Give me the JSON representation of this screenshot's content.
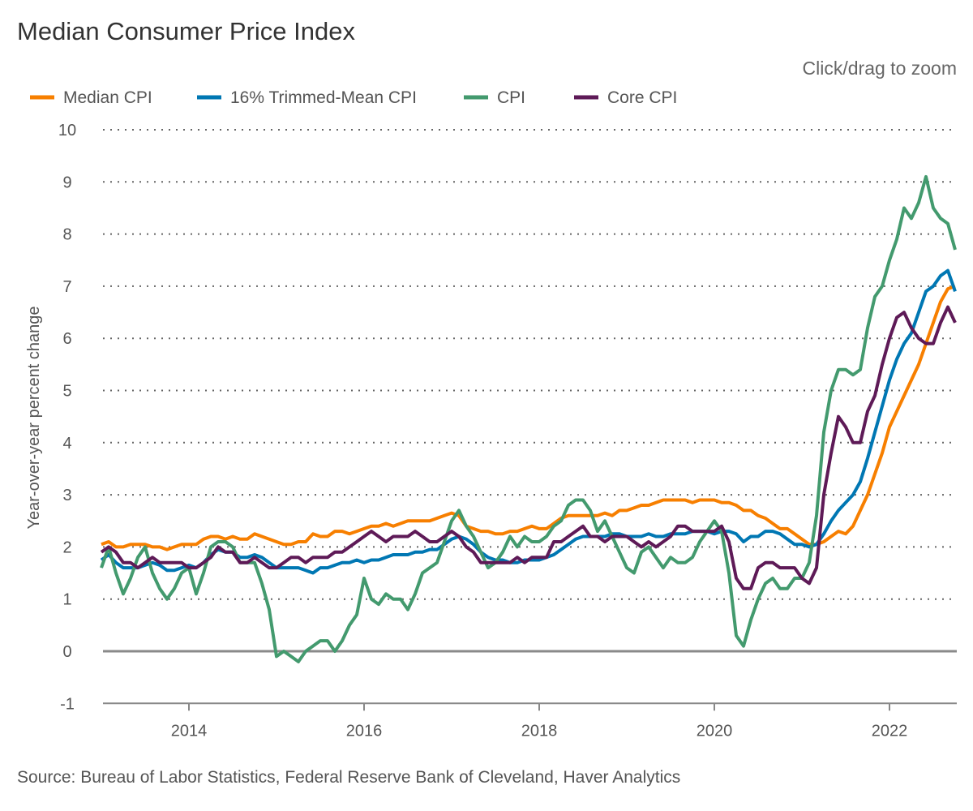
{
  "title": "Median Consumer Price Index",
  "zoom_hint": "Click/drag to zoom",
  "source": "Source: Bureau of Labor Statistics, Federal Reserve Bank of Cleveland, Haver Analytics",
  "chart_data": {
    "type": "line",
    "title": "Median Consumer Price Index",
    "xlabel": "",
    "ylabel": "Year-over-year percent change",
    "x_start": "2013-01",
    "x_end": "2022-10",
    "x_frequency": "monthly",
    "x_ticks": [
      "2014",
      "2016",
      "2018",
      "2020",
      "2022"
    ],
    "y_ticks": [
      "-1",
      "0",
      "1",
      "2",
      "3",
      "4",
      "5",
      "6",
      "7",
      "8",
      "9",
      "10"
    ],
    "ylim": [
      -1,
      10
    ],
    "grid": true,
    "legend": "top-left",
    "series": [
      {
        "name": "Median CPI",
        "color": "#f77f00",
        "values": [
          2.05,
          2.1,
          2.0,
          2.0,
          2.05,
          2.05,
          2.05,
          2.0,
          2.0,
          1.95,
          2.0,
          2.05,
          2.05,
          2.05,
          2.15,
          2.2,
          2.2,
          2.15,
          2.2,
          2.15,
          2.15,
          2.25,
          2.2,
          2.15,
          2.1,
          2.05,
          2.05,
          2.1,
          2.1,
          2.25,
          2.2,
          2.2,
          2.3,
          2.3,
          2.25,
          2.3,
          2.35,
          2.4,
          2.4,
          2.45,
          2.4,
          2.45,
          2.5,
          2.5,
          2.5,
          2.5,
          2.55,
          2.6,
          2.65,
          2.6,
          2.4,
          2.35,
          2.3,
          2.3,
          2.25,
          2.25,
          2.3,
          2.3,
          2.35,
          2.4,
          2.35,
          2.35,
          2.45,
          2.55,
          2.6,
          2.6,
          2.6,
          2.6,
          2.6,
          2.65,
          2.6,
          2.7,
          2.7,
          2.75,
          2.8,
          2.8,
          2.85,
          2.9,
          2.9,
          2.9,
          2.9,
          2.85,
          2.9,
          2.9,
          2.9,
          2.85,
          2.85,
          2.8,
          2.7,
          2.7,
          2.6,
          2.55,
          2.45,
          2.35,
          2.35,
          2.25,
          2.15,
          2.05,
          2.05,
          2.1,
          2.2,
          2.3,
          2.25,
          2.4,
          2.7,
          3.0,
          3.4,
          3.8,
          4.3,
          4.6,
          4.9,
          5.2,
          5.5,
          5.9,
          6.3,
          6.7,
          6.95,
          7.0
        ]
      },
      {
        "name": "16% Trimmed-Mean CPI",
        "color": "#0077b3",
        "values": [
          1.75,
          1.85,
          1.7,
          1.6,
          1.6,
          1.6,
          1.65,
          1.7,
          1.65,
          1.55,
          1.55,
          1.6,
          1.65,
          1.6,
          1.7,
          1.85,
          1.95,
          1.9,
          1.9,
          1.8,
          1.8,
          1.85,
          1.8,
          1.7,
          1.6,
          1.6,
          1.6,
          1.6,
          1.55,
          1.5,
          1.6,
          1.6,
          1.65,
          1.7,
          1.7,
          1.75,
          1.7,
          1.75,
          1.75,
          1.8,
          1.85,
          1.85,
          1.85,
          1.9,
          1.9,
          1.95,
          1.95,
          2.05,
          2.15,
          2.2,
          2.15,
          2.05,
          1.9,
          1.8,
          1.75,
          1.75,
          1.7,
          1.7,
          1.75,
          1.75,
          1.75,
          1.8,
          1.85,
          1.95,
          2.05,
          2.15,
          2.2,
          2.2,
          2.2,
          2.2,
          2.25,
          2.25,
          2.2,
          2.2,
          2.2,
          2.25,
          2.2,
          2.2,
          2.25,
          2.25,
          2.25,
          2.3,
          2.3,
          2.3,
          2.25,
          2.3,
          2.3,
          2.25,
          2.1,
          2.2,
          2.2,
          2.3,
          2.3,
          2.25,
          2.15,
          2.05,
          2.05,
          2.0,
          2.05,
          2.25,
          2.5,
          2.7,
          2.85,
          3.0,
          3.25,
          3.7,
          4.2,
          4.7,
          5.2,
          5.6,
          5.9,
          6.1,
          6.5,
          6.9,
          7.0,
          7.2,
          7.3,
          6.9
        ]
      },
      {
        "name": "CPI",
        "color": "#439a6e",
        "values": [
          1.6,
          2.0,
          1.5,
          1.1,
          1.4,
          1.8,
          2.0,
          1.5,
          1.2,
          1.0,
          1.2,
          1.5,
          1.6,
          1.1,
          1.5,
          2.0,
          2.1,
          2.1,
          2.0,
          1.7,
          1.7,
          1.7,
          1.3,
          0.8,
          -0.1,
          0.0,
          -0.1,
          -0.2,
          0.0,
          0.1,
          0.2,
          0.2,
          0.0,
          0.2,
          0.5,
          0.7,
          1.4,
          1.0,
          0.9,
          1.1,
          1.0,
          1.0,
          0.8,
          1.1,
          1.5,
          1.6,
          1.7,
          2.1,
          2.5,
          2.7,
          2.4,
          2.2,
          1.9,
          1.6,
          1.7,
          1.9,
          2.2,
          2.0,
          2.2,
          2.1,
          2.1,
          2.2,
          2.4,
          2.5,
          2.8,
          2.9,
          2.9,
          2.7,
          2.3,
          2.5,
          2.2,
          1.9,
          1.6,
          1.5,
          1.9,
          2.0,
          1.8,
          1.6,
          1.8,
          1.7,
          1.7,
          1.8,
          2.1,
          2.3,
          2.5,
          2.3,
          1.5,
          0.3,
          0.1,
          0.6,
          1.0,
          1.3,
          1.4,
          1.2,
          1.2,
          1.4,
          1.4,
          1.7,
          2.6,
          4.2,
          5.0,
          5.4,
          5.4,
          5.3,
          5.4,
          6.2,
          6.8,
          7.0,
          7.5,
          7.9,
          8.5,
          8.3,
          8.6,
          9.1,
          8.5,
          8.3,
          8.2,
          7.7
        ]
      },
      {
        "name": "Core CPI",
        "color": "#5e1a57",
        "values": [
          1.9,
          2.0,
          1.9,
          1.7,
          1.7,
          1.6,
          1.7,
          1.8,
          1.7,
          1.7,
          1.7,
          1.7,
          1.6,
          1.6,
          1.7,
          1.8,
          2.0,
          1.9,
          1.9,
          1.7,
          1.7,
          1.8,
          1.7,
          1.6,
          1.6,
          1.7,
          1.8,
          1.8,
          1.7,
          1.8,
          1.8,
          1.8,
          1.9,
          1.9,
          2.0,
          2.1,
          2.2,
          2.3,
          2.2,
          2.1,
          2.2,
          2.2,
          2.2,
          2.3,
          2.2,
          2.1,
          2.1,
          2.2,
          2.3,
          2.2,
          2.0,
          1.9,
          1.7,
          1.7,
          1.7,
          1.7,
          1.7,
          1.8,
          1.7,
          1.8,
          1.8,
          1.8,
          2.1,
          2.1,
          2.2,
          2.3,
          2.4,
          2.2,
          2.2,
          2.1,
          2.2,
          2.2,
          2.2,
          2.1,
          2.0,
          2.1,
          2.0,
          2.1,
          2.2,
          2.4,
          2.4,
          2.3,
          2.3,
          2.3,
          2.3,
          2.4,
          2.1,
          1.4,
          1.2,
          1.2,
          1.6,
          1.7,
          1.7,
          1.6,
          1.6,
          1.6,
          1.4,
          1.3,
          1.6,
          3.0,
          3.8,
          4.5,
          4.3,
          4.0,
          4.0,
          4.6,
          4.9,
          5.5,
          6.0,
          6.4,
          6.5,
          6.2,
          6.0,
          5.9,
          5.9,
          6.3,
          6.6,
          6.3
        ]
      }
    ]
  }
}
